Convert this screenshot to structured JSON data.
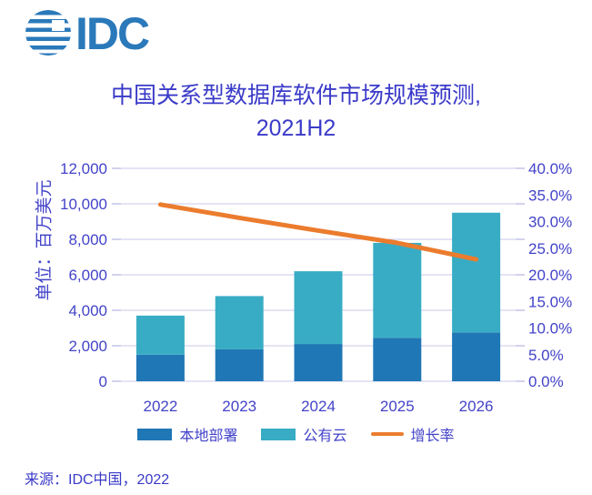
{
  "logo": {
    "text": "IDC",
    "color": "#2A79BA"
  },
  "header": {
    "title_line1": "中国关系型数据库软件市场规模预测,",
    "title_line2": "2021H2",
    "title_color": "#3A3AC9"
  },
  "chart_data": {
    "type": "bar",
    "subtype": "stacked-bar-with-line",
    "title": "中国关系型数据库软件市场规模预测, 2021H2",
    "categories": [
      "2022",
      "2023",
      "2024",
      "2025",
      "2026"
    ],
    "series": [
      {
        "name": "本地部署",
        "type": "bar",
        "color": "#2077B5",
        "values": [
          1500,
          1800,
          2100,
          2450,
          2750
        ]
      },
      {
        "name": "公有云",
        "type": "bar",
        "color": "#38ACC4",
        "values": [
          2200,
          3000,
          4100,
          5350,
          6750
        ]
      },
      {
        "name": "增长率",
        "type": "line",
        "axis": "right",
        "color": "#EB7C2E",
        "unit": "%",
        "values": [
          33.2,
          30.7,
          28.3,
          26.0,
          22.9
        ]
      }
    ],
    "stacked_totals": [
      3700,
      4800,
      6200,
      7800,
      9500
    ],
    "left_axis": {
      "title": "单位：百万美元",
      "min": 0,
      "max": 12000,
      "step": 2000,
      "tick_labels": [
        "0",
        "2,000",
        "4,000",
        "6,000",
        "8,000",
        "10,000",
        "12,000"
      ]
    },
    "right_axis": {
      "min": 0,
      "max": 40,
      "step": 5,
      "tick_labels": [
        "0.0%",
        "5.0%",
        "10.0%",
        "15.0%",
        "20.0%",
        "25.0%",
        "30.0%",
        "35.0%",
        "40.0%"
      ]
    },
    "grid": "horizontal",
    "grid_color": "#C9C8ED",
    "tick_color": "#A5A5DC",
    "text_color": "#4343C9",
    "legend_position": "bottom"
  },
  "footer": {
    "source": "来源：IDC中国，2022"
  }
}
